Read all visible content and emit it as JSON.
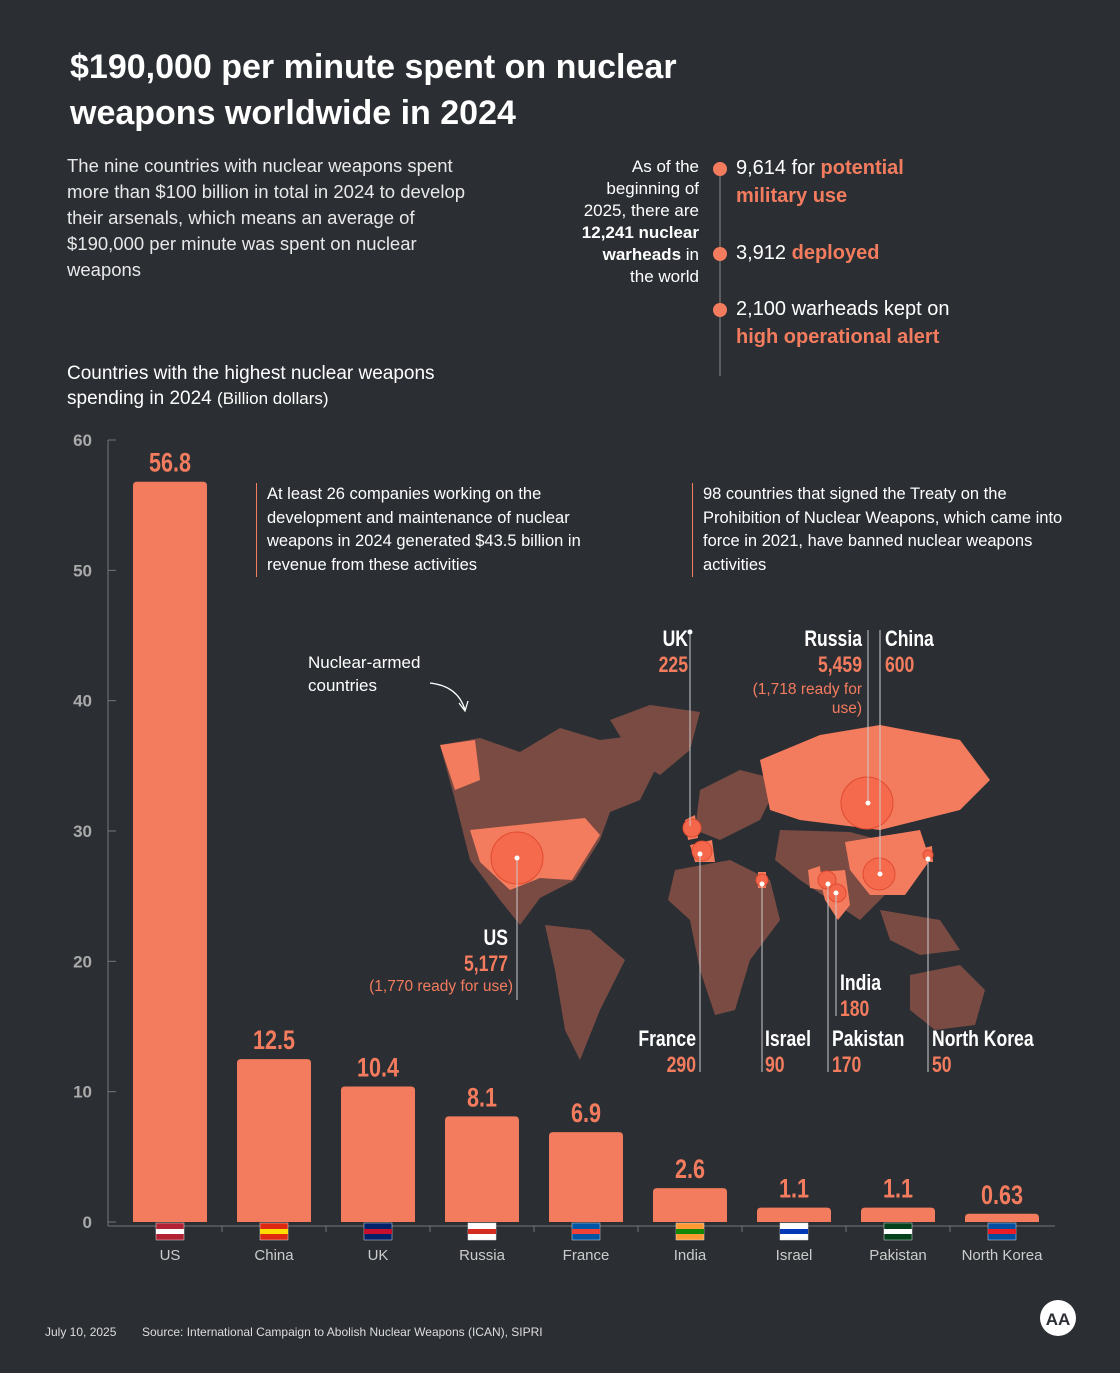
{
  "header": {
    "title": "$190,000 per minute spent on nuclear weapons worldwide in 2024",
    "intro": "The nine countries with nuclear weapons spent more than $100 billion in total in 2024 to develop their arsenals, which means an average of $190,000 per minute was spent on nuclear weapons"
  },
  "warheads": {
    "lead": {
      "before": "As of the beginning of 2025, there are",
      "bold": "12,241 nuclear warheads",
      "after": "in the world"
    },
    "items": [
      {
        "text": "9,614 for",
        "highlight": "potential military use"
      },
      {
        "text": "3,912",
        "highlight": "deployed"
      },
      {
        "text": "2,100 warheads kept on",
        "highlight": "high operational alert"
      }
    ]
  },
  "chart_data": {
    "type": "bar",
    "title": "Countries with the highest nuclear weapons spending in 2024",
    "unit": "(Billion dollars)",
    "categories": [
      "US",
      "China",
      "UK",
      "Russia",
      "France",
      "India",
      "Israel",
      "Pakistan",
      "North Korea"
    ],
    "values": [
      56.8,
      12.5,
      10.4,
      8.1,
      6.9,
      2.6,
      1.1,
      1.1,
      0.63
    ],
    "color": "#f47c5e",
    "ylim": [
      0,
      60
    ],
    "yticks": [
      0,
      10,
      20,
      30,
      40,
      50,
      60
    ]
  },
  "notes": [
    "At least 26 companies working on the development and maintenance of nuclear weapons in 2024 generated $43.5 billion in revenue from these activities",
    "98 countries that signed the Treaty on the Prohibition of Nuclear Weapons, which came into force in 2021, have banned nuclear weapons activities"
  ],
  "map": {
    "label": "Nuclear-armed countries",
    "countries": [
      {
        "name": "UK",
        "warheads": "225"
      },
      {
        "name": "Russia",
        "warheads": "5,459",
        "note": "(1,718 ready for use)"
      },
      {
        "name": "China",
        "warheads": "600"
      },
      {
        "name": "US",
        "warheads": "5,177",
        "note": "(1,770 ready for use)"
      },
      {
        "name": "France",
        "warheads": "290"
      },
      {
        "name": "Israel",
        "warheads": "90"
      },
      {
        "name": "India",
        "warheads": "180"
      },
      {
        "name": "Pakistan",
        "warheads": "170"
      },
      {
        "name": "North Korea",
        "warheads": "50"
      }
    ]
  },
  "footer": {
    "date": "July 10, 2025",
    "source": "Source: International Campaign to Abolish Nuclear Weapons (ICAN), SIPRI"
  }
}
